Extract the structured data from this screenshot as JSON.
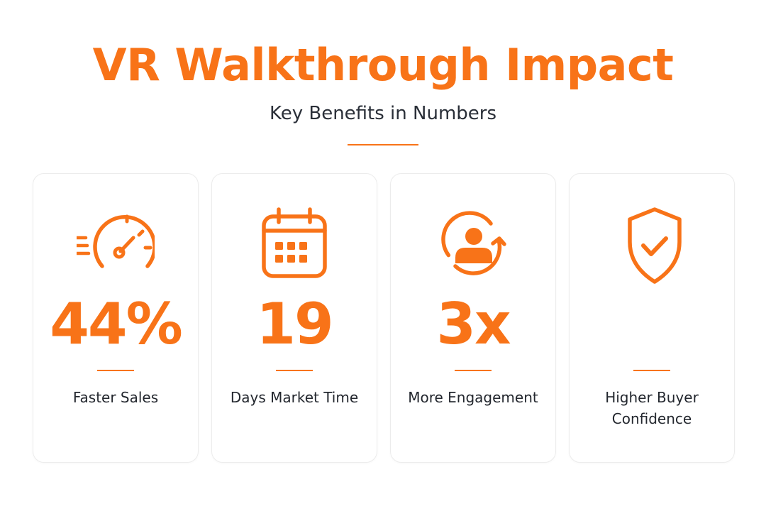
{
  "header": {
    "title": "VR Walkthrough Impact",
    "subtitle": "Key Benefits in Numbers"
  },
  "accent_color": "#f87318",
  "stats": [
    {
      "icon": "speedometer-icon",
      "value": "44%",
      "label": "Faster Sales"
    },
    {
      "icon": "calendar-icon",
      "value": "19",
      "label": "Days Market Time"
    },
    {
      "icon": "user-refresh-icon",
      "value": "3x",
      "label": "More Engagement"
    },
    {
      "icon": "shield-check-icon",
      "value": "",
      "label": "Higher Buyer Confidence"
    }
  ]
}
